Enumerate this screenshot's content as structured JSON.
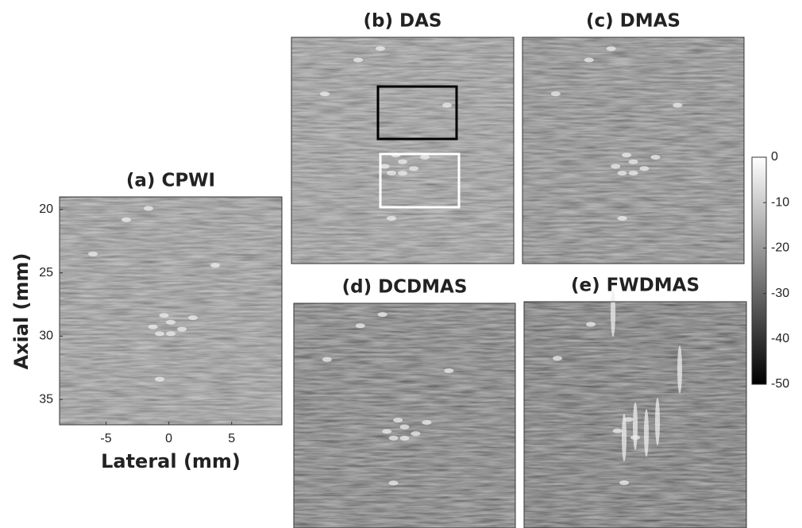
{
  "panels": [
    {
      "title": "(a) CPWI",
      "xlim": [
        -8.7,
        9
      ],
      "ylim": [
        19,
        37
      ],
      "xticks": [
        -5,
        0,
        5
      ],
      "yticks": [
        20,
        25,
        30,
        35
      ],
      "style": "light"
    },
    {
      "title": "(b) DAS",
      "style": "light",
      "boxes": true
    },
    {
      "title": "(c) DMAS",
      "style": "mid"
    },
    {
      "title": "(d) DCDMAS",
      "style": "dark"
    },
    {
      "title": "(e) FWDMAS",
      "style": "black"
    }
  ],
  "x_label": "Lateral (mm)",
  "y_label": "Axial (mm)",
  "colorbar": {
    "lim": [
      -50,
      0
    ],
    "ticks": [
      0,
      -10,
      -20,
      -30,
      -40,
      -50
    ]
  }
}
